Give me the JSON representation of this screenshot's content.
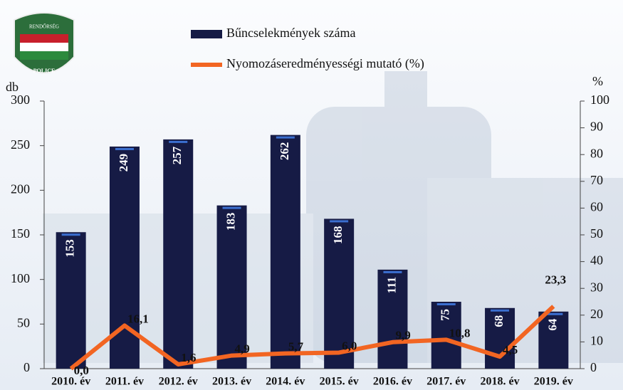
{
  "chart_data": {
    "type": "bar",
    "logo": {
      "top": "RENDŐRSÉG",
      "bottom": "POLICE"
    },
    "ylabel": "db",
    "y2label": "%",
    "categories": [
      "2010. év",
      "2011. év",
      "2012. év",
      "2013. év",
      "2014. év",
      "2015. év",
      "2016. év",
      "2017. év",
      "2018. év",
      "2019. év"
    ],
    "series": [
      {
        "name": "Bűncselekmények száma",
        "type": "bar",
        "color": "#161b45",
        "values": [
          153,
          249,
          257,
          183,
          262,
          168,
          111,
          75,
          68,
          64
        ]
      },
      {
        "name": "Nyomozáseredményességi mutató (%)",
        "type": "line",
        "axis": "y2",
        "color": "#f26522",
        "values": [
          0.0,
          16.1,
          1.6,
          4.9,
          5.7,
          6.0,
          9.9,
          10.8,
          4.5,
          23.3
        ],
        "value_labels": [
          "0,0",
          "16,1",
          "1,6",
          "4,9",
          "5,7",
          "6,0",
          "9,9",
          "10,8",
          "4,5",
          "23,3"
        ]
      }
    ],
    "ylim": [
      0,
      300
    ],
    "yticks": [
      0,
      50,
      100,
      150,
      200,
      250,
      300
    ],
    "y2lim": [
      0,
      100
    ],
    "y2ticks": [
      0,
      10,
      20,
      30,
      40,
      50,
      60,
      70,
      80,
      90,
      100
    ]
  }
}
